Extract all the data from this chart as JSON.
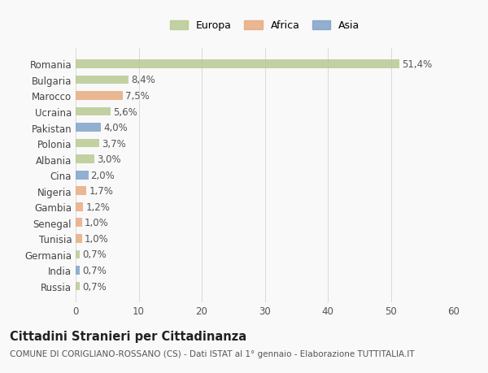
{
  "categories": [
    "Romania",
    "Bulgaria",
    "Marocco",
    "Ucraina",
    "Pakistan",
    "Polonia",
    "Albania",
    "Cina",
    "Nigeria",
    "Gambia",
    "Senegal",
    "Tunisia",
    "Germania",
    "India",
    "Russia"
  ],
  "values": [
    51.4,
    8.4,
    7.5,
    5.6,
    4.0,
    3.7,
    3.0,
    2.0,
    1.7,
    1.2,
    1.0,
    1.0,
    0.7,
    0.7,
    0.7
  ],
  "labels": [
    "51,4%",
    "8,4%",
    "7,5%",
    "5,6%",
    "4,0%",
    "3,7%",
    "3,0%",
    "2,0%",
    "1,7%",
    "1,2%",
    "1,0%",
    "1,0%",
    "0,7%",
    "0,7%",
    "0,7%"
  ],
  "colors": [
    "#b5c98e",
    "#b5c98e",
    "#e8a87c",
    "#b5c98e",
    "#7b9fc7",
    "#b5c98e",
    "#b5c98e",
    "#7b9fc7",
    "#e8a87c",
    "#e8a87c",
    "#e8a87c",
    "#e8a87c",
    "#b5c98e",
    "#7b9fc7",
    "#b5c98e"
  ],
  "legend_labels": [
    "Europa",
    "Africa",
    "Asia"
  ],
  "legend_colors": [
    "#b5c98e",
    "#e8a87c",
    "#7b9fc7"
  ],
  "xlim": [
    0,
    60
  ],
  "xticks": [
    0,
    10,
    20,
    30,
    40,
    50,
    60
  ],
  "title": "Cittadini Stranieri per Cittadinanza",
  "subtitle": "COMUNE DI CORIGLIANO-ROSSANO (CS) - Dati ISTAT al 1° gennaio - Elaborazione TUTTITALIA.IT",
  "bg_color": "#f9f9f9",
  "grid_color": "#d8d8d8",
  "bar_height": 0.55,
  "label_fontsize": 8.5,
  "tick_fontsize": 8.5,
  "title_fontsize": 10.5,
  "subtitle_fontsize": 7.5
}
